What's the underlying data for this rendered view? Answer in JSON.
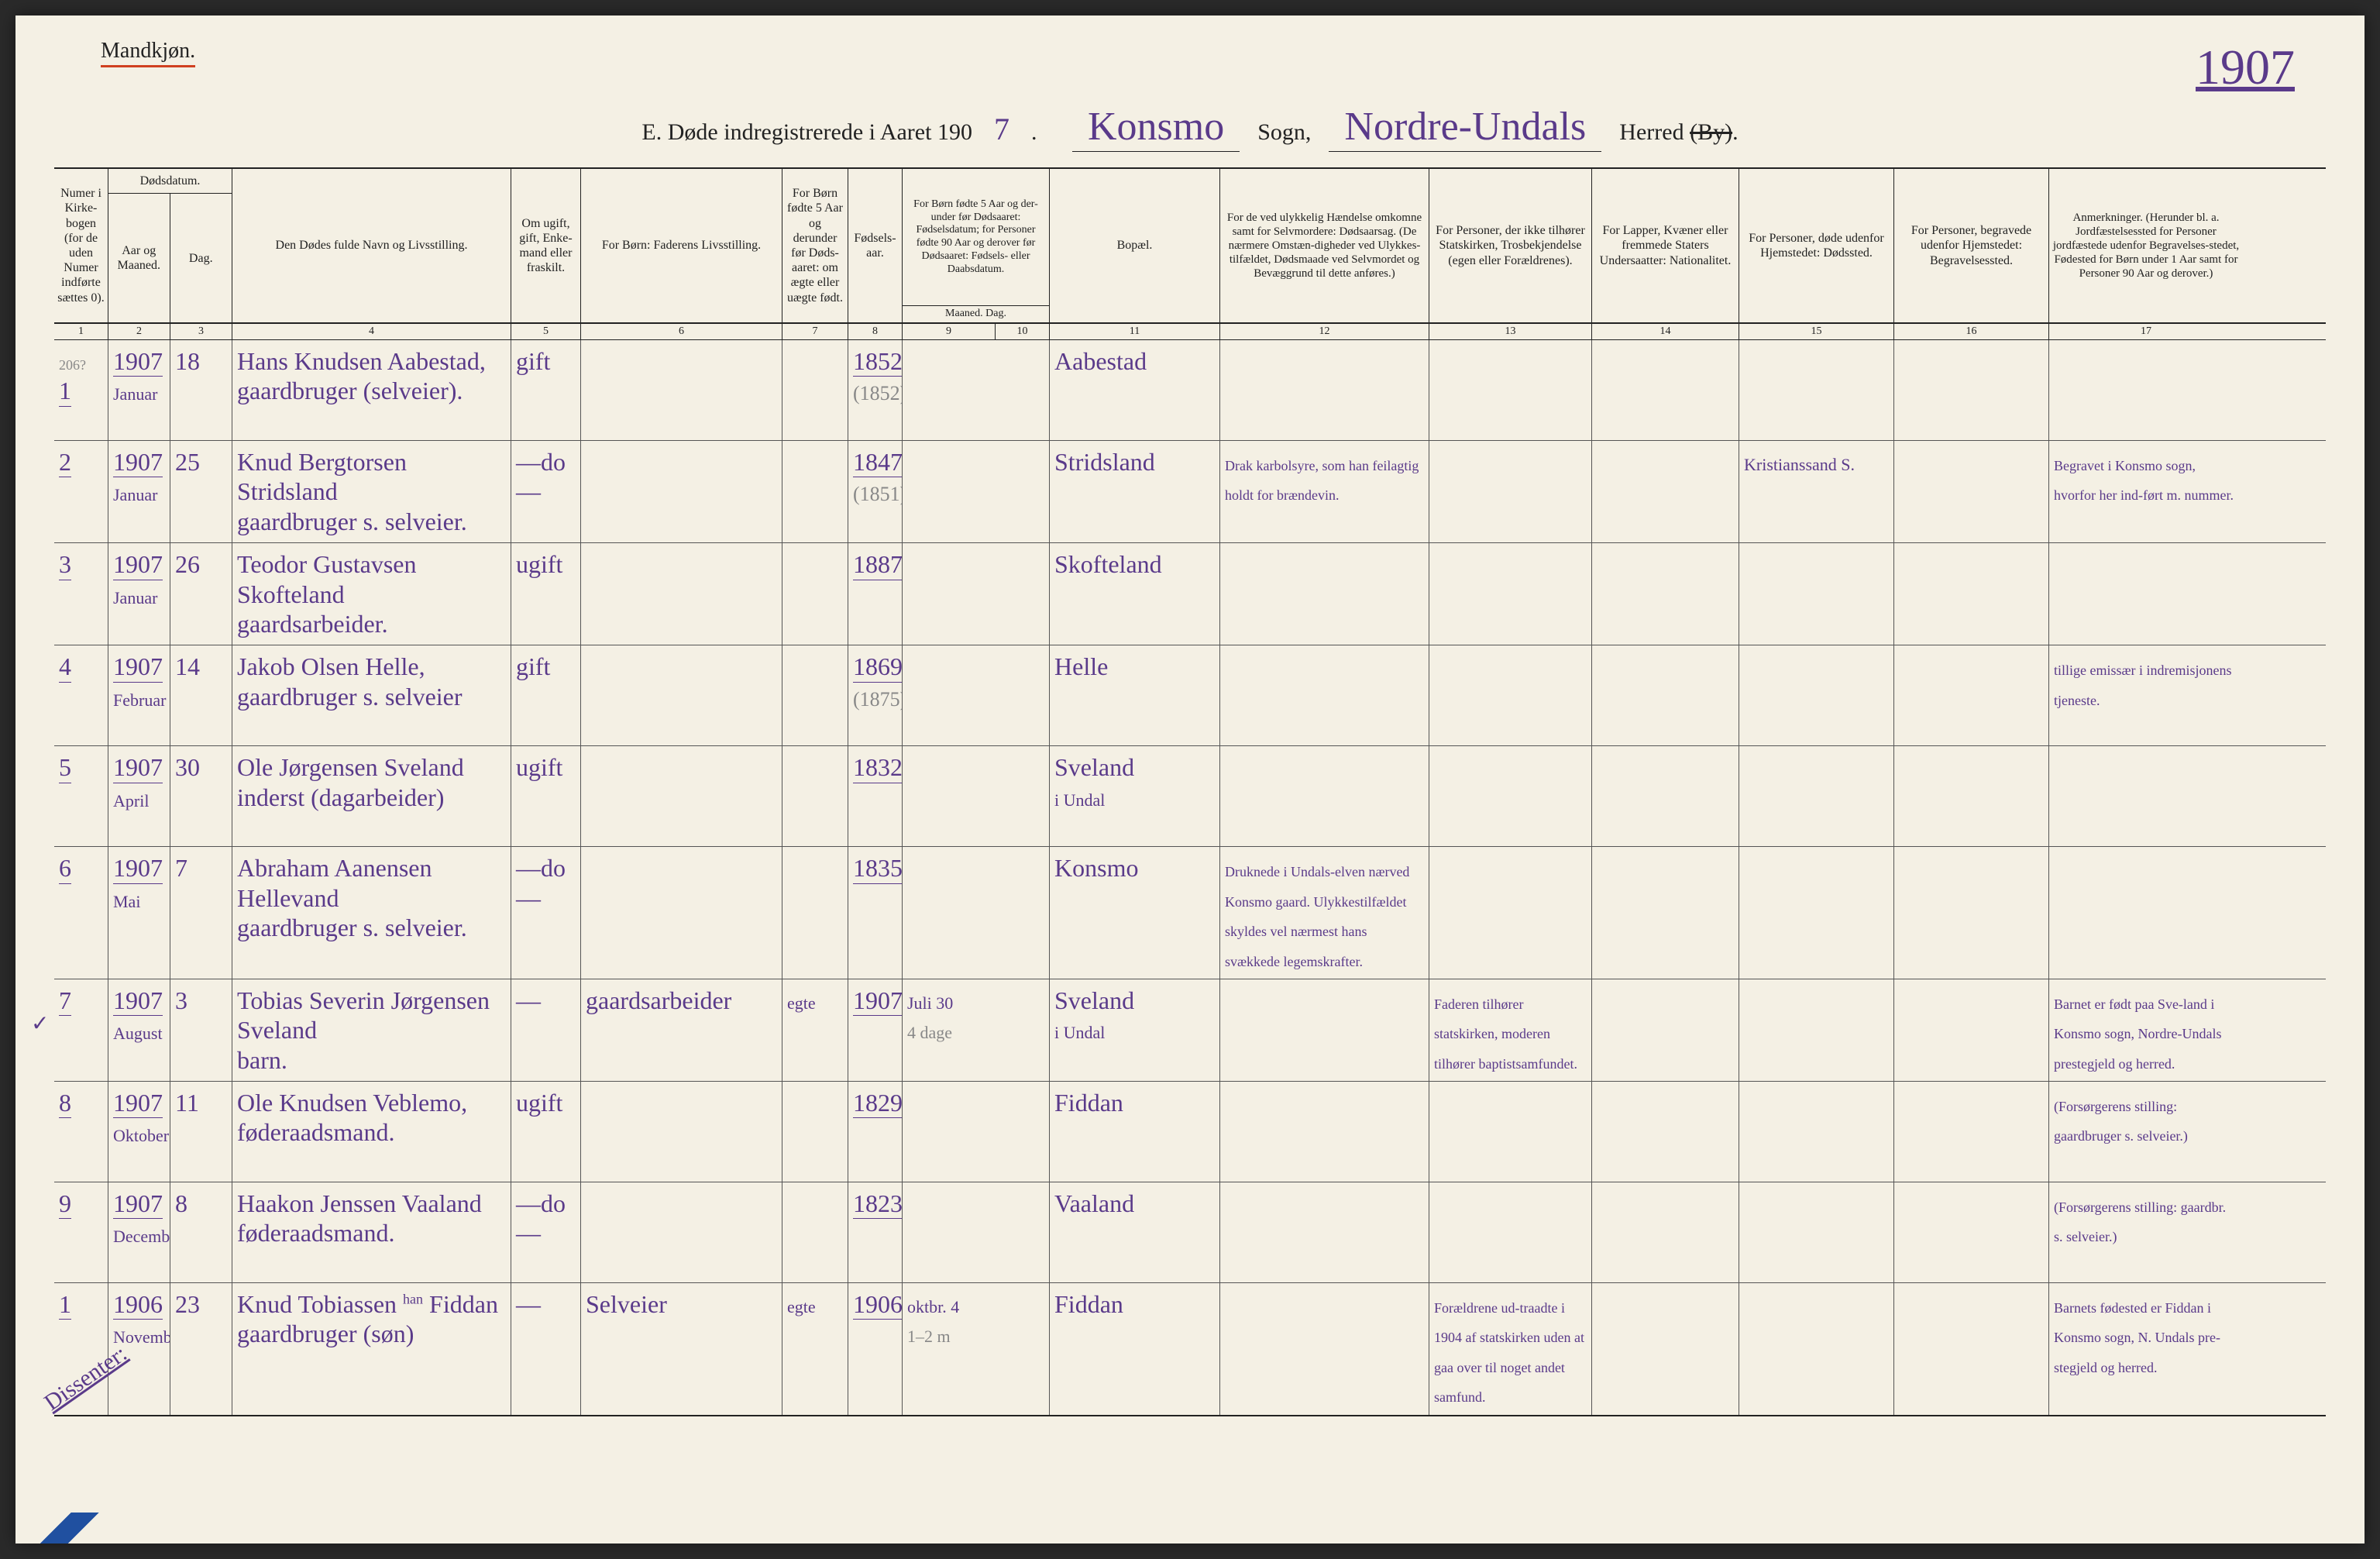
{
  "page": {
    "gender_label": "Mandkjøn.",
    "year": "1907",
    "title_prefix": "E.   Døde indregistrerede i Aaret 190",
    "title_year_suffix": "7",
    "parish_label": "Konsmo",
    "sogn_word": "Sogn,",
    "district_label": "Nordre-Undals",
    "herred_word": "Herred",
    "by_struck": "(By)"
  },
  "headers": {
    "c1": "Numer i Kirke-bogen (for de uden Numer indførte sættes 0).",
    "c2a": "Dødsdatum.",
    "c2b": "Aar og Maaned.",
    "c3": "Dag.",
    "c4": "Den Dødes fulde Navn og Livsstilling.",
    "c5": "Om ugift, gift, Enke-mand eller fraskilt.",
    "c6": "For Børn: Faderens Livsstilling.",
    "c7": "For Børn fødte 5 Aar og derunder før Døds-aaret: om ægte eller uægte født.",
    "c8": "Fødsels-aar.",
    "c9": "For Børn fødte 5 Aar og der-under før Dødsaaret: Fødselsdatum; for Personer fødte 90 Aar og derover før Dødsaaret: Fødsels- eller Daabsdatum.",
    "c9b": "Maaned.  Dag.",
    "c11": "Bopæl.",
    "c12": "For de ved ulykkelig Hændelse omkomne samt for Selvmordere: Dødsaarsag. (De nærmere Omstæn-digheder ved Ulykkes-tilfældet, Dødsmaade ved Selvmordet og Bevæggrund til dette anføres.)",
    "c13": "For Personer, der ikke tilhører Statskirken, Trosbekjendelse (egen eller Forældrenes).",
    "c14": "For Lapper, Kvæner eller fremmede Staters Undersaatter: Nationalitet.",
    "c15": "For Personer, døde udenfor Hjemstedet: Dødssted.",
    "c16": "For Personer, begravede udenfor Hjemstedet: Begravelsessted.",
    "c17": "Anmerkninger. (Herunder bl. a. Jordfæstelsessted for Personer jordfæstede udenfor Begravelses-stedet, Fødested for Børn under 1 Aar samt for Personer 90 Aar og derover.)"
  },
  "colnums": [
    "1",
    "2",
    "3",
    "4",
    "5",
    "6",
    "7",
    "8",
    "9",
    "10",
    "11",
    "12",
    "13",
    "14",
    "15",
    "16",
    "17"
  ],
  "rows": [
    {
      "num": "1",
      "margin": "206?",
      "year": "1907",
      "month": "Januar",
      "day": "18",
      "name_l1": "Hans Knudsen Aabestad,",
      "name_l2": "gaardbruger (selveier).",
      "civil": "gift",
      "father": "",
      "legit": "",
      "birth": "1852",
      "birth_paren": "(1852)",
      "bdate": "",
      "place": "Aabestad",
      "cause": "",
      "faith": "",
      "nat": "",
      "deathplace": "",
      "burial": "",
      "notes": ""
    },
    {
      "num": "2",
      "year": "1907",
      "month": "Januar",
      "day": "25",
      "name_l1": "Knud Bergtorsen Stridsland",
      "name_l2": "gaardbruger s. selveier.",
      "civil": "—do—",
      "father": "",
      "legit": "",
      "birth": "1847",
      "birth_paren": "(1851)",
      "bdate": "",
      "place": "Stridsland",
      "cause": "Drak karbolsyre, som han feilagtig holdt for brændevin.",
      "faith": "",
      "nat": "",
      "deathplace": "Kristianssand S.",
      "burial": "",
      "notes": "Begravet i Konsmo sogn, hvorfor her ind-ført m. nummer."
    },
    {
      "num": "3",
      "year": "1907",
      "month": "Januar",
      "day": "26",
      "name_l1": "Teodor Gustavsen Skofteland",
      "name_l2": "gaardsarbeider.",
      "civil": "ugift",
      "father": "",
      "legit": "",
      "birth": "1887",
      "birth_paren": "",
      "bdate": "",
      "place": "Skofteland",
      "cause": "",
      "faith": "",
      "nat": "",
      "deathplace": "",
      "burial": "",
      "notes": ""
    },
    {
      "num": "4",
      "year": "1907",
      "month": "Februar",
      "day": "14",
      "name_l1": "Jakob Olsen Helle,",
      "name_l2": "gaardbruger s. selveier",
      "civil": "gift",
      "father": "",
      "legit": "",
      "birth": "1869",
      "birth_paren": "(1875)",
      "bdate": "",
      "place": "Helle",
      "cause": "",
      "faith": "",
      "nat": "",
      "deathplace": "",
      "burial": "",
      "notes": "tillige emissær i indremisjonens tjeneste."
    },
    {
      "num": "5",
      "year": "1907",
      "month": "April",
      "day": "30",
      "name_l1": "Ole Jørgensen Sveland",
      "name_l2": "inderst (dagarbeider)",
      "civil": "ugift",
      "father": "",
      "legit": "",
      "birth": "1832",
      "birth_paren": "",
      "bdate": "",
      "place": "Sveland",
      "place_l2": "i Undal",
      "cause": "",
      "faith": "",
      "nat": "",
      "deathplace": "",
      "burial": "",
      "notes": ""
    },
    {
      "num": "6",
      "year": "1907",
      "month": "Mai",
      "day": "7",
      "name_l1": "Abraham Aanensen Hellevand",
      "name_l2": "gaardbruger s. selveier.",
      "civil": "—do—",
      "father": "",
      "legit": "",
      "birth": "1835",
      "birth_paren": "",
      "bdate": "",
      "place": "Konsmo",
      "cause": "Druknede i Undals-elven nærved Konsmo gaard. Ulykkestilfældet skyldes vel nærmest hans svækkede legemskrafter.",
      "faith": "",
      "nat": "",
      "deathplace": "",
      "burial": "",
      "notes": ""
    },
    {
      "num": "7",
      "check": "✓",
      "year": "1907",
      "month": "August",
      "day": "3",
      "name_l1": "Tobias Severin Jørgensen Sveland",
      "name_l2": "barn.",
      "civil": "—",
      "father": "gaardsarbeider",
      "legit": "egte",
      "birth": "1907",
      "birth_paren": "",
      "bdate": "Juli 30",
      "bdate_l2": "4 dage",
      "place": "Sveland",
      "place_l2": "i Undal",
      "cause": "",
      "faith": "Faderen tilhører statskirken, moderen tilhører baptistsamfundet.",
      "nat": "",
      "deathplace": "",
      "burial": "",
      "notes": "Barnet er født paa Sve-land i Konsmo sogn, Nordre-Undals prestegjeld og herred."
    },
    {
      "num": "8",
      "year": "1907",
      "month": "Oktober",
      "day": "11",
      "name_l1": "Ole Knudsen Veblemo,",
      "name_l2": "føderaadsmand.",
      "civil": "ugift",
      "father": "",
      "legit": "",
      "birth": "1829",
      "birth_paren": "",
      "bdate": "",
      "place": "Fiddan",
      "cause": "",
      "faith": "",
      "nat": "",
      "deathplace": "",
      "burial": "",
      "notes": "(Forsørgerens stilling: gaardbruger s. selveier.)"
    },
    {
      "num": "9",
      "year": "1907",
      "month": "December",
      "day": "8",
      "name_l1": "Haakon Jenssen Vaaland",
      "name_l2": "føderaadsmand.",
      "civil": "—do—",
      "father": "",
      "legit": "",
      "birth": "1823",
      "birth_paren": "",
      "bdate": "",
      "place": "Vaaland",
      "cause": "",
      "faith": "",
      "nat": "",
      "deathplace": "",
      "burial": "",
      "notes": "(Forsørgerens stilling: gaardbr. s. selveier.)"
    },
    {
      "num": "1",
      "dissenter": "Dissenter:",
      "year": "1906",
      "month": "November",
      "day": "23",
      "name_l1": "Knud Tobiassen Fiddan",
      "name_l2": "gaardbruger (søn)",
      "name_insert": "han",
      "civil": "—",
      "father": "Selveier",
      "legit": "egte",
      "birth": "1906",
      "birth_paren": "",
      "bdate": "oktbr. 4",
      "bdate_l2": "1–2 m",
      "place": "Fiddan",
      "cause": "",
      "faith": "Forældrene ud-traadte i 1904 af statskirken uden at gaa over til noget andet samfund.",
      "nat": "",
      "deathplace": "",
      "burial": "",
      "notes": "Barnets fødested er Fiddan i Konsmo sogn, N. Undals pre-stegjeld og herred."
    }
  ],
  "style": {
    "ink_color": "#5a3a8a",
    "pencil_color": "#888888",
    "print_color": "#222222",
    "rule_color": "#555555",
    "underline_red": "#d04020",
    "paper": "#f4f0e4"
  }
}
